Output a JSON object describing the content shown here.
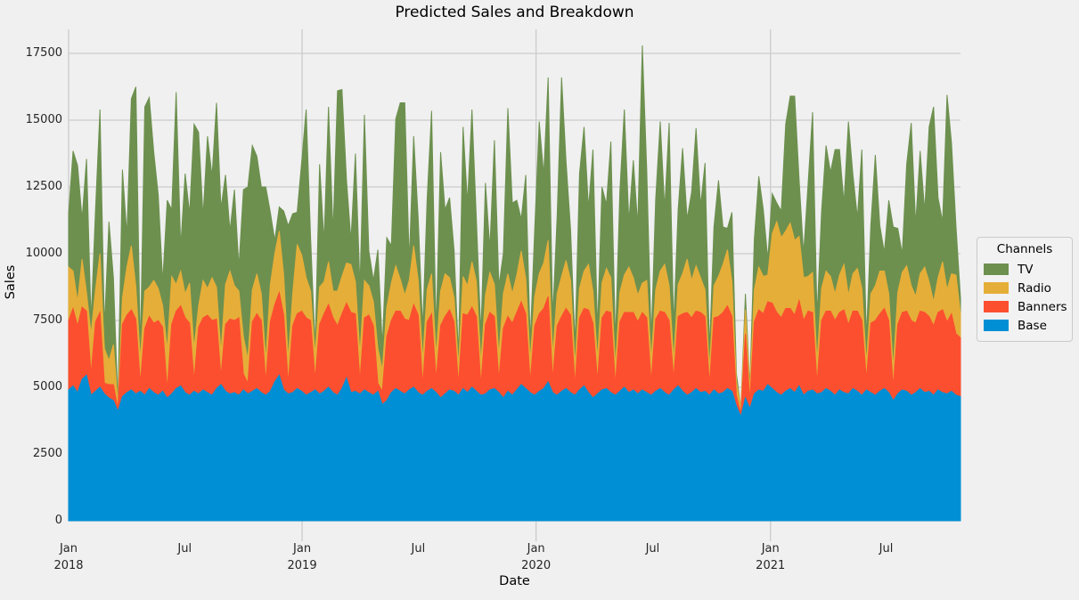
{
  "title": "Predicted Sales and Breakdown",
  "x_axis": {
    "label": "Date",
    "ticks": [
      {
        "label": "Jan",
        "year": "2018",
        "pos": 0,
        "grid": true,
        "tick_mark": false
      },
      {
        "label": "Jul",
        "year": "",
        "pos": 25.9,
        "grid": false,
        "tick_mark": false
      },
      {
        "label": "Jan",
        "year": "2019",
        "pos": 52.1,
        "grid": true,
        "tick_mark": true
      },
      {
        "label": "Jul",
        "year": "",
        "pos": 78.0,
        "grid": false,
        "tick_mark": false
      },
      {
        "label": "Jan",
        "year": "2020",
        "pos": 104.3,
        "grid": true,
        "tick_mark": true
      },
      {
        "label": "Jul",
        "year": "",
        "pos": 130.3,
        "grid": false,
        "tick_mark": false
      },
      {
        "label": "Jan",
        "year": "2021",
        "pos": 156.6,
        "grid": true,
        "tick_mark": true
      },
      {
        "label": "Jul",
        "year": "",
        "pos": 182.4,
        "grid": false,
        "tick_mark": false
      }
    ]
  },
  "y_axis": {
    "label": "Sales",
    "ticks": [
      0,
      2500,
      5000,
      7500,
      10000,
      12500,
      15000,
      17500
    ]
  },
  "legend": {
    "title": "Channels",
    "items": [
      {
        "label": "TV",
        "color": "#6d904f"
      },
      {
        "label": "Radio",
        "color": "#e5ae38"
      },
      {
        "label": "Banners",
        "color": "#fc4f30"
      },
      {
        "label": "Base",
        "color": "#008fd5"
      }
    ]
  },
  "colors": {
    "background": "#f0f0f0",
    "grid": "#cbcbcb",
    "text": "#262626",
    "tv": "#6d904f",
    "radio": "#e5ae38",
    "banners": "#fc4f30",
    "base": "#008fd5"
  },
  "chart_data": {
    "type": "area",
    "stacked": true,
    "title": "Predicted Sales and Breakdown",
    "xlabel": "Date",
    "ylabel": "Sales",
    "legend_title": "Channels",
    "legend_position": "center right, outside axes",
    "grid": "horizontal at every y tick; vertical at January ticks only",
    "x_unit": "weeks since 2018-01-01 (weekly samples, Jan 2018 - late Oct 2021)",
    "x_range": [
      0,
      199
    ],
    "ylim": [
      0,
      18400
    ],
    "y_ticks": [
      0,
      2500,
      5000,
      7500,
      10000,
      12500,
      15000,
      17500
    ],
    "series": [
      {
        "name": "Base",
        "color": "#008fd5",
        "values": [
          4900,
          5050,
          4800,
          5300,
          5450,
          4700,
          4850,
          5000,
          4750,
          4600,
          4500,
          4100,
          4650,
          4800,
          4900,
          4750,
          4850,
          4700,
          4950,
          4800,
          4700,
          4850,
          4600,
          4750,
          4950,
          5050,
          4800,
          4700,
          4850,
          4750,
          4900,
          4800,
          4700,
          4950,
          5100,
          4850,
          4750,
          4800,
          4700,
          4900,
          4750,
          4850,
          4950,
          4800,
          4700,
          4850,
          5200,
          5450,
          4900,
          4750,
          4800,
          4950,
          4850,
          4700,
          4800,
          4900,
          4750,
          4850,
          5000,
          4800,
          4700,
          4950,
          5350,
          4800,
          4850,
          4750,
          4900,
          4800,
          4700,
          4850,
          4350,
          4500,
          4800,
          4950,
          4850,
          4750,
          4900,
          5000,
          4800,
          4700,
          4850,
          4950,
          4800,
          4600,
          4750,
          4900,
          4850,
          4700,
          4950,
          4800,
          5000,
          4850,
          4700,
          4750,
          4900,
          4950,
          4800,
          4600,
          4850,
          4700,
          4900,
          5100,
          4950,
          4800,
          4700,
          4850,
          4950,
          5200,
          4800,
          4700,
          4850,
          4950,
          4800,
          4700,
          4900,
          5050,
          4800,
          4600,
          4750,
          4900,
          4950,
          4800,
          4700,
          4850,
          5000,
          4800,
          4900,
          4750,
          4900,
          4800,
          4700,
          4850,
          4950,
          4800,
          4700,
          4900,
          5050,
          4850,
          4700,
          4800,
          4950,
          4800,
          4850,
          4700,
          4900,
          4750,
          4800,
          4950,
          4850,
          4300,
          3900,
          4600,
          4200,
          4750,
          4900,
          4850,
          5100,
          4950,
          4800,
          4700,
          4850,
          4950,
          4800,
          5050,
          4700,
          4850,
          4900,
          4750,
          4800,
          4950,
          4850,
          4700,
          4900,
          4800,
          4750,
          4950,
          4850,
          4700,
          4900,
          4800,
          4700,
          4850,
          4950,
          4800,
          4500,
          4750,
          4900,
          4850,
          4700,
          4800,
          4950,
          4800,
          4850,
          4700,
          4900,
          4800,
          4750,
          4850,
          4700,
          4650
        ]
      },
      {
        "name": "Banners",
        "color": "#fc4f30",
        "values": [
          2600,
          2900,
          2500,
          2700,
          2400,
          800,
          2600,
          2800,
          400,
          500,
          600,
          100,
          2700,
          2900,
          3000,
          2800,
          300,
          2500,
          2700,
          2600,
          2800,
          2400,
          300,
          2600,
          2900,
          3000,
          2800,
          2700,
          400,
          2500,
          2700,
          2900,
          2800,
          2600,
          300,
          2500,
          2800,
          2700,
          2900,
          600,
          400,
          2600,
          2800,
          2700,
          500,
          2600,
          2900,
          3100,
          2800,
          400,
          2500,
          2800,
          3000,
          2900,
          2700,
          400,
          2600,
          2900,
          3100,
          2800,
          2600,
          2800,
          2800,
          3000,
          2900,
          500,
          2700,
          2900,
          2600,
          300,
          500,
          2400,
          2700,
          2900,
          3000,
          2800,
          2600,
          3100,
          2900,
          400,
          2600,
          2800,
          500,
          2700,
          2900,
          3000,
          2600,
          400,
          2800,
          2900,
          3000,
          2800,
          400,
          2600,
          2900,
          2700,
          500,
          2600,
          2800,
          2700,
          2900,
          3100,
          2800,
          400,
          2600,
          2900,
          3000,
          3200,
          500,
          2600,
          2800,
          3000,
          2900,
          400,
          2700,
          2900,
          3100,
          2800,
          500,
          2700,
          2900,
          3000,
          400,
          2600,
          2800,
          3000,
          2900,
          2700,
          2900,
          2800,
          500,
          2700,
          2900,
          3000,
          2800,
          400,
          2600,
          2900,
          3100,
          2800,
          2900,
          3000,
          2800,
          400,
          2700,
          2900,
          3000,
          3100,
          2800,
          400,
          100,
          2400,
          300,
          2700,
          3000,
          2900,
          3100,
          3200,
          3000,
          2900,
          3100,
          3000,
          2900,
          3200,
          2800,
          3000,
          2900,
          400,
          2700,
          2900,
          3000,
          2800,
          2900,
          3100,
          2600,
          2900,
          3000,
          2800,
          400,
          2600,
          2800,
          2900,
          3000,
          2700,
          500,
          2600,
          2900,
          3000,
          2800,
          2600,
          2900,
          3000,
          2800,
          2600,
          2900,
          3100,
          2700,
          2900,
          2300,
          2200
        ]
      },
      {
        "name": "Radio",
        "color": "#e5ae38",
        "values": [
          2000,
          1400,
          900,
          1800,
          700,
          1500,
          1200,
          2200,
          1300,
          900,
          1500,
          200,
          1000,
          1800,
          2400,
          1200,
          900,
          1400,
          1100,
          1600,
          1200,
          800,
          1500,
          1800,
          1000,
          1300,
          900,
          1500,
          1200,
          800,
          1400,
          1000,
          1600,
          1200,
          900,
          1500,
          1800,
          1300,
          1000,
          1400,
          900,
          1200,
          1500,
          1000,
          800,
          1400,
          1900,
          2300,
          1500,
          900,
          1200,
          2600,
          2100,
          1500,
          1100,
          900,
          1400,
          1200,
          1600,
          1000,
          1300,
          1400,
          1500,
          1800,
          1200,
          1000,
          1400,
          1100,
          900,
          1300,
          800,
          1100,
          1400,
          1700,
          1200,
          900,
          1500,
          2200,
          1300,
          900,
          1200,
          1500,
          900,
          1300,
          1600,
          1200,
          900,
          700,
          1400,
          1100,
          1700,
          1300,
          800,
          1100,
          1500,
          1200,
          900,
          1300,
          1600,
          1100,
          1400,
          1900,
          1300,
          800,
          1100,
          1500,
          1700,
          2100,
          900,
          1200,
          1500,
          1800,
          1300,
          700,
          1100,
          1400,
          1700,
          1200,
          800,
          1300,
          1600,
          1300,
          700,
          1100,
          1400,
          1700,
          1300,
          1000,
          1100,
          1400,
          800,
          1100,
          1500,
          1800,
          1300,
          700,
          1200,
          1500,
          2000,
          1400,
          1700,
          1300,
          1000,
          600,
          1200,
          1500,
          1800,
          2100,
          1300,
          500,
          200,
          900,
          400,
          1200,
          1600,
          1400,
          1000,
          2600,
          3400,
          3000,
          2900,
          3200,
          2800,
          2400,
          1600,
          1300,
          1500,
          800,
          1200,
          1500,
          1300,
          1000,
          1400,
          1700,
          1100,
          1400,
          1600,
          1200,
          600,
          1100,
          1300,
          1600,
          1400,
          1000,
          700,
          1200,
          1500,
          1700,
          1300,
          1000,
          1400,
          1700,
          1300,
          900,
          1300,
          1800,
          1200,
          1500,
          2200,
          900
        ]
      },
      {
        "name": "TV",
        "color": "#6d904f",
        "values": [
          2000,
          4500,
          5100,
          1500,
          5000,
          500,
          3000,
          5400,
          800,
          5200,
          2500,
          0,
          4800,
          1200,
          5500,
          7500,
          300,
          6900,
          7100,
          4800,
          3500,
          900,
          5600,
          2500,
          7200,
          900,
          4500,
          2600,
          8400,
          6500,
          2400,
          5700,
          3800,
          6900,
          5400,
          4100,
          1500,
          3600,
          900,
          5500,
          6450,
          5400,
          4400,
          4000,
          6500,
          2700,
          500,
          900,
          2400,
          5000,
          3000,
          1200,
          3500,
          6300,
          2000,
          300,
          4600,
          1500,
          5800,
          2200,
          7500,
          7000,
          3100,
          900,
          4800,
          2500,
          6200,
          1300,
          800,
          3700,
          900,
          2600,
          1400,
          5500,
          6600,
          7200,
          700,
          4100,
          2300,
          1200,
          3400,
          6100,
          900,
          5200,
          2400,
          3000,
          1800,
          400,
          5600,
          3100,
          5700,
          2300,
          1100,
          4200,
          900,
          5400,
          2600,
          1500,
          6200,
          3400,
          2800,
          1200,
          3900,
          700,
          2500,
          5700,
          3300,
          6100,
          1400,
          2900,
          7450,
          3700,
          1900,
          800,
          4300,
          5400,
          2100,
          5300,
          1100,
          3600,
          2400,
          5100,
          900,
          3800,
          6200,
          1700,
          4400,
          2600,
          8900,
          4100,
          800,
          3400,
          5600,
          2100,
          6100,
          1300,
          2800,
          4700,
          1500,
          3300,
          5150,
          2700,
          4750,
          700,
          2200,
          3600,
          1400,
          800,
          2600,
          300,
          0,
          600,
          100,
          1900,
          3400,
          2500,
          600,
          1500,
          700,
          1000,
          4000,
          4750,
          5400,
          2100,
          900,
          3500,
          6000,
          1700,
          2900,
          4700,
          3900,
          5400,
          4700,
          2300,
          6500,
          3700,
          1900,
          5200,
          900,
          2600,
          4900,
          1700,
          700,
          3500,
          5300,
          2400,
          700,
          3800,
          6100,
          2700,
          4600,
          2100,
          5800,
          7300,
          3000,
          1500,
          7300,
          4900,
          1800,
          600
        ]
      }
    ]
  }
}
